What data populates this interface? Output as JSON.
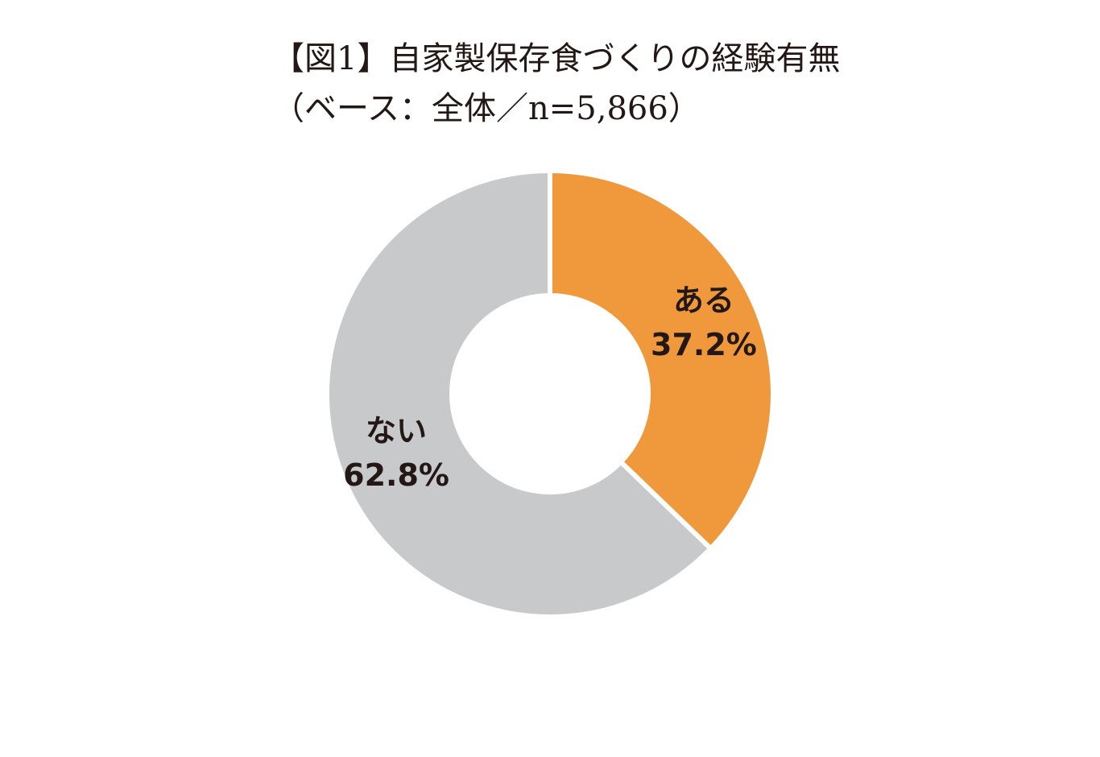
{
  "chart_data": {
    "type": "pie",
    "title": "【図1】自家製保存食づくりの経験有無",
    "subtitle": "（ベース：全体／n=5,866）",
    "categories": [
      "ある",
      "ない"
    ],
    "values": [
      37.2,
      62.8
    ],
    "value_labels": [
      "37.2%",
      "62.8%"
    ],
    "colors": [
      "#F0993C",
      "#C8C9CA"
    ],
    "donut": true,
    "start": "12 o'clock",
    "direction": "clockwise"
  }
}
